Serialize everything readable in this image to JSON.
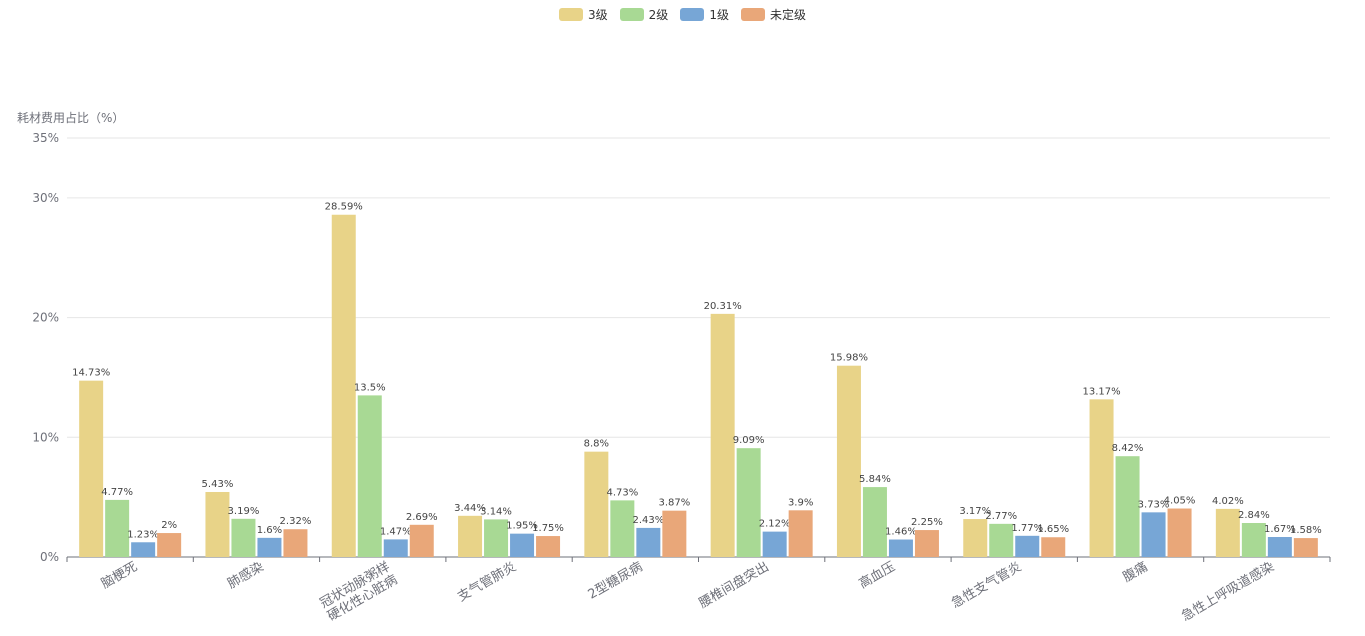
{
  "chart_data": {
    "type": "bar",
    "ylabel": "耗材费用占比（%）",
    "ylim": [
      0,
      35
    ],
    "yticks": [
      "0%",
      "10%",
      "20%",
      "30%",
      "35%"
    ],
    "ytick_values": [
      0,
      10,
      20,
      30,
      35
    ],
    "categories": [
      "脑梗死",
      "肺感染",
      "冠状动脉粥样\n硬化性心脏病",
      "支气管肺炎",
      "2型糖尿病",
      "腰椎间盘突出",
      "高血压",
      "急性支气管炎",
      "腹痛",
      "急性上呼吸道感染"
    ],
    "series": [
      {
        "name": "3级",
        "color": "#e8d388",
        "values": [
          14.73,
          5.43,
          28.59,
          3.44,
          8.8,
          20.31,
          15.98,
          3.17,
          13.17,
          4.02
        ],
        "labels": [
          "14.73%",
          "5.43%",
          "28.59%",
          "3.44%",
          "8.8%",
          "20.31%",
          "15.98%",
          "3.17%",
          "13.17%",
          "4.02%"
        ]
      },
      {
        "name": "2级",
        "color": "#a8d994",
        "values": [
          4.77,
          3.19,
          13.5,
          3.14,
          4.73,
          9.09,
          5.84,
          2.77,
          8.42,
          2.84
        ],
        "labels": [
          "4.77%",
          "3.19%",
          "13.5%",
          "3.14%",
          "4.73%",
          "9.09%",
          "5.84%",
          "2.77%",
          "8.42%",
          "2.84%"
        ]
      },
      {
        "name": "1级",
        "color": "#77a6d6",
        "values": [
          1.23,
          1.6,
          1.47,
          1.95,
          2.43,
          2.12,
          1.46,
          1.77,
          3.73,
          1.67
        ],
        "labels": [
          "1.23%",
          "1.6%",
          "1.47%",
          "1.95%",
          "2.43%",
          "2.12%",
          "1.46%",
          "1.77%",
          "3.73%",
          "1.67%"
        ]
      },
      {
        "name": "未定级",
        "color": "#e9a779",
        "values": [
          2,
          2.32,
          2.69,
          1.75,
          3.87,
          3.9,
          2.25,
          1.65,
          4.05,
          1.58
        ],
        "labels": [
          "2%",
          "2.32%",
          "2.69%",
          "1.75%",
          "3.87%",
          "3.9%",
          "2.25%",
          "1.65%",
          "4.05%",
          "1.58%"
        ]
      }
    ],
    "grid": true,
    "legend_position": "top-center"
  }
}
